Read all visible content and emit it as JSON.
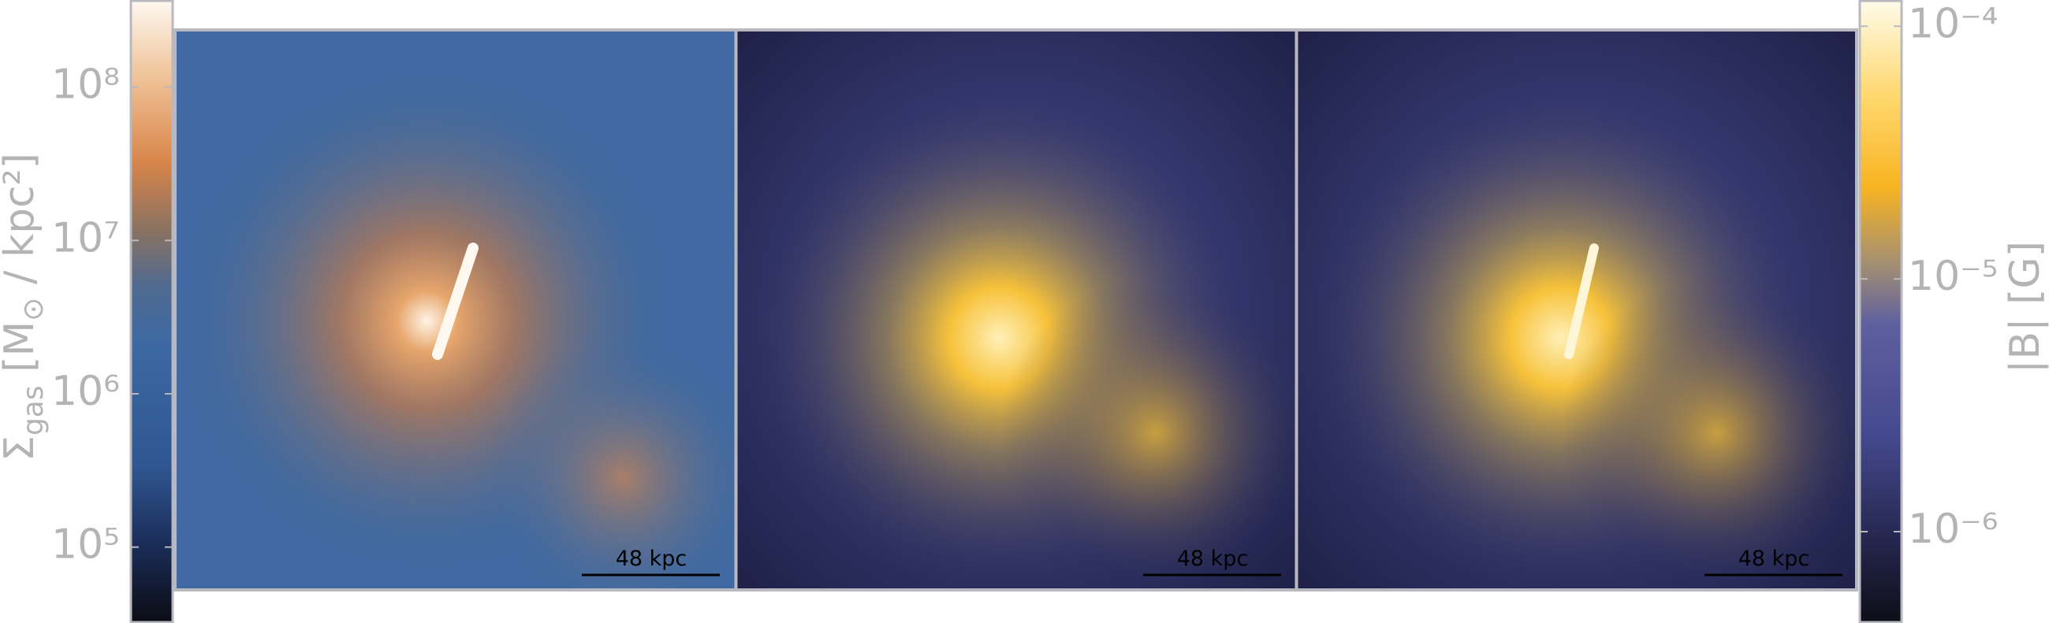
{
  "colorbar_left": {
    "label": [
      "Σ",
      "gas",
      " [M",
      "⊙",
      " / kpc²]"
    ],
    "scale": "log",
    "lim": [
      32000,
      370000000
    ],
    "ticks": [
      {
        "value": 100000000,
        "label": "10⁸"
      },
      {
        "value": 10000000,
        "label": "10⁷"
      },
      {
        "value": 1000000,
        "label": "10⁶"
      },
      {
        "value": 100000,
        "label": "10⁵"
      }
    ]
  },
  "colorbar_right": {
    "label": "|B| [G]",
    "scale": "log",
    "lim": [
      4.35e-07,
      0.000127
    ],
    "ticks": [
      {
        "value": 0.0001,
        "label": "10⁻⁴"
      },
      {
        "value": 1e-05,
        "label": "10⁻⁵"
      },
      {
        "value": 1e-06,
        "label": "10⁻⁶"
      }
    ]
  },
  "panels": [
    {
      "scale_label": "48 kpc"
    },
    {
      "scale_label": "48 kpc"
    },
    {
      "scale_label": "48 kpc"
    }
  ]
}
